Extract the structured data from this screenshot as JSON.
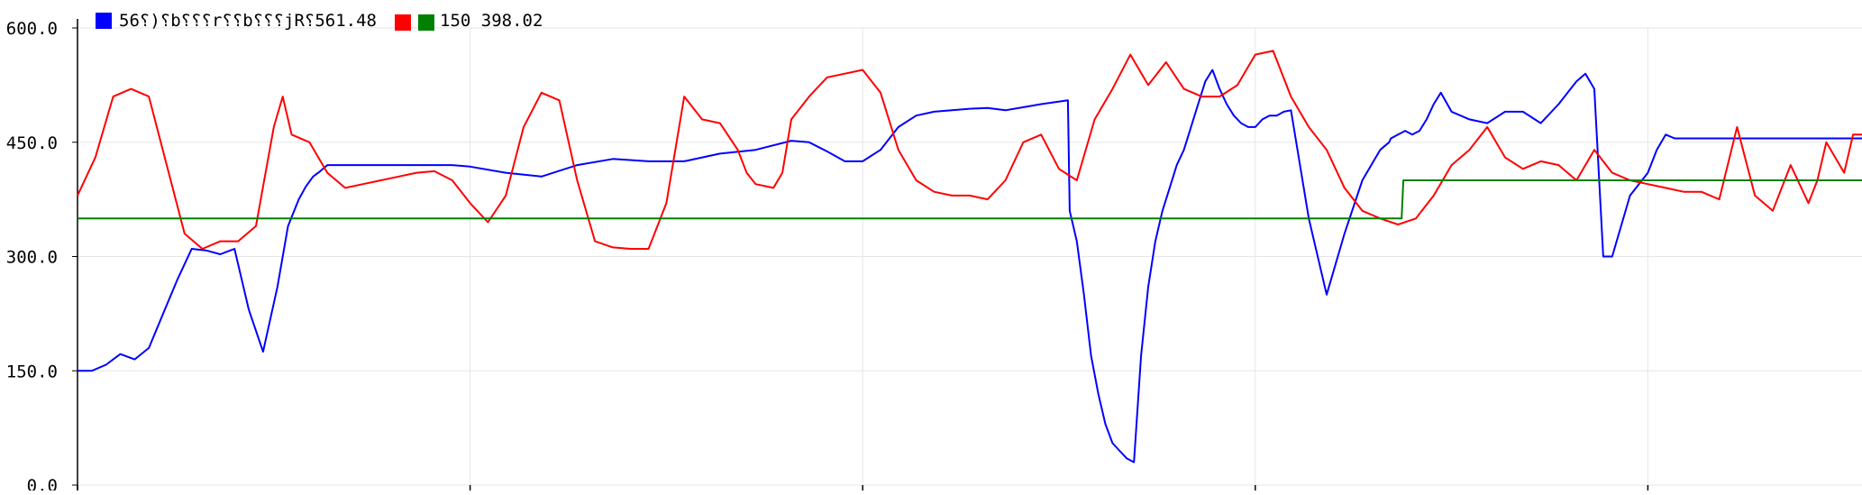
{
  "legend": {
    "series1_label": "56⸮)⸮b⸮⸮⸮r⸮⸮b⸮⸮⸮jR⸮561.48",
    "series2_label": "",
    "series3_label": "150  398.02"
  },
  "chart_data": {
    "type": "line",
    "title": "",
    "xlabel": "",
    "ylabel": "",
    "ylim": [
      0,
      600
    ],
    "xlim": [
      0,
      1000
    ],
    "y_ticks": [
      "600.0",
      "450.0",
      "300.0",
      "150.0",
      "0.0"
    ],
    "y_tick_values": [
      600,
      450,
      300,
      150,
      0
    ],
    "x_gridlines": [
      0,
      220,
      440,
      660,
      880
    ],
    "grid": true,
    "legend_position": "top-left",
    "series": [
      {
        "color": "#0000ff",
        "x": [
          0,
          8,
          16,
          24,
          32,
          40,
          48,
          56,
          64,
          72,
          80,
          88,
          96,
          104,
          112,
          118,
          124,
          128,
          132,
          136,
          140,
          144,
          148,
          152,
          156,
          160,
          164,
          168,
          172,
          176,
          180,
          190,
          200,
          210,
          220,
          240,
          260,
          280,
          300,
          320,
          340,
          360,
          380,
          400,
          410,
          420,
          430,
          440,
          450,
          460,
          470,
          480,
          490,
          500,
          510,
          520,
          540,
          555,
          556,
          560,
          564,
          568,
          572,
          576,
          580,
          584,
          588,
          592,
          596,
          600,
          604,
          608,
          612,
          616,
          620,
          624,
          628,
          632,
          636,
          640,
          644,
          648,
          652,
          656,
          660,
          664,
          668,
          672,
          676,
          680,
          690,
          700,
          710,
          720,
          730,
          735,
          736,
          740,
          744,
          748,
          752,
          756,
          760,
          764,
          770,
          780,
          790,
          800,
          810,
          820,
          830,
          840,
          845,
          850,
          855,
          860,
          870,
          880,
          885,
          890,
          895,
          900,
          905,
          910,
          912,
          915,
          920,
          930,
          940,
          960,
          980,
          1000
        ],
        "values": [
          150,
          150,
          158,
          172,
          165,
          180,
          225,
          270,
          310,
          308,
          303,
          310,
          230,
          175,
          260,
          340,
          375,
          392,
          405,
          412,
          420,
          420,
          420,
          420,
          420,
          420,
          420,
          420,
          420,
          420,
          420,
          420,
          420,
          420,
          418,
          410,
          405,
          420,
          428,
          425,
          425,
          435,
          440,
          452,
          450,
          438,
          425,
          425,
          440,
          470,
          485,
          490,
          492,
          494,
          495,
          492,
          500,
          505,
          360,
          320,
          250,
          170,
          120,
          80,
          55,
          45,
          35,
          30,
          170,
          260,
          320,
          360,
          390,
          420,
          440,
          470,
          500,
          530,
          545,
          520,
          500,
          485,
          475,
          470,
          470,
          480,
          485,
          485,
          490,
          492,
          350,
          250,
          330,
          400,
          440,
          450,
          455,
          460,
          465,
          460,
          465,
          480,
          500,
          515,
          490,
          480,
          475,
          490,
          490,
          475,
          500,
          530,
          540,
          520,
          300,
          300,
          380,
          410,
          440,
          460,
          455,
          455,
          455,
          455,
          455,
          455,
          455,
          455,
          455,
          455,
          455,
          455
        ]
      },
      {
        "color": "#ff0000",
        "x": [
          0,
          10,
          20,
          30,
          40,
          50,
          60,
          70,
          80,
          90,
          100,
          110,
          115,
          120,
          130,
          140,
          150,
          160,
          170,
          180,
          190,
          200,
          210,
          220,
          230,
          240,
          250,
          260,
          270,
          280,
          290,
          300,
          310,
          320,
          330,
          340,
          350,
          360,
          370,
          375,
          380,
          390,
          395,
          400,
          410,
          420,
          430,
          440,
          450,
          460,
          470,
          480,
          490,
          500,
          510,
          520,
          530,
          540,
          550,
          560,
          570,
          580,
          590,
          600,
          610,
          620,
          630,
          640,
          650,
          660,
          670,
          680,
          690,
          700,
          710,
          720,
          730,
          740,
          750,
          760,
          770,
          780,
          790,
          800,
          810,
          820,
          830,
          840,
          850,
          860,
          870,
          880,
          890,
          900,
          910,
          920,
          930,
          940,
          950,
          960,
          970,
          975,
          980,
          985,
          990,
          995,
          1000
        ],
        "values": [
          380,
          430,
          510,
          520,
          510,
          420,
          330,
          310,
          320,
          320,
          340,
          470,
          510,
          460,
          450,
          410,
          390,
          395,
          400,
          405,
          410,
          412,
          400,
          370,
          345,
          380,
          470,
          515,
          505,
          400,
          320,
          312,
          310,
          310,
          370,
          510,
          480,
          475,
          440,
          410,
          395,
          390,
          410,
          480,
          510,
          535,
          540,
          545,
          515,
          440,
          400,
          385,
          380,
          380,
          375,
          400,
          450,
          460,
          415,
          400,
          480,
          520,
          565,
          525,
          555,
          520,
          510,
          510,
          525,
          565,
          570,
          510,
          470,
          440,
          390,
          360,
          350,
          342,
          350,
          380,
          420,
          440,
          470,
          430,
          415,
          425,
          420,
          400,
          440,
          410,
          400,
          395,
          390,
          385,
          385,
          375,
          470,
          380,
          360,
          420,
          370,
          400,
          450,
          430,
          410,
          460,
          460
        ]
      },
      {
        "color": "#008000",
        "x": [
          0,
          742,
          743,
          1000
        ],
        "values": [
          350,
          350,
          400,
          400
        ]
      }
    ]
  }
}
